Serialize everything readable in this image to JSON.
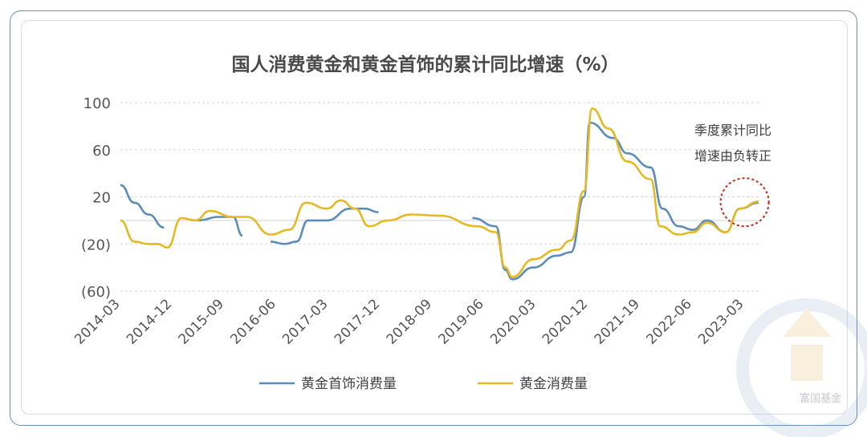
{
  "chart_data": {
    "type": "line",
    "title": "国人消费黄金和黄金首饰的累计同比增速（%）",
    "y_tick_labels": [
      "100",
      "60",
      "20",
      "(20)",
      "(60)"
    ],
    "y_tick_values": [
      100,
      60,
      20,
      -20,
      -60
    ],
    "ylim": [
      -60,
      100
    ],
    "x_tick_labels": [
      "2014-03",
      "2014-12",
      "2015-09",
      "2016-06",
      "2017-03",
      "2017-12",
      "2018-09",
      "2019-06",
      "2020-03",
      "2020-12",
      "2021-19",
      "2022-06",
      "2023-03"
    ],
    "grid": true,
    "legend_position": "bottom",
    "series": [
      {
        "name": "黄金首饰消费量",
        "color": "#5b8db8",
        "points": [
          [
            0,
            30
          ],
          [
            0.3,
            15
          ],
          [
            0.6,
            5
          ],
          [
            0.93,
            -6
          ],
          [
            1.65,
            0
          ],
          [
            2.1,
            3
          ],
          [
            2.4,
            3
          ],
          [
            2.6,
            -13
          ],
          [
            3.2,
            -18
          ],
          [
            3.5,
            -20
          ],
          [
            3.75,
            -18
          ],
          [
            4,
            0
          ],
          [
            4.4,
            0
          ],
          [
            4.9,
            10
          ],
          [
            5.2,
            10
          ],
          [
            5.5,
            7
          ],
          [
            6.2,
            7.5
          ],
          [
            6.9,
            6
          ],
          [
            7.5,
            2
          ],
          [
            8.0,
            -5
          ],
          [
            8.2,
            -42
          ],
          [
            8.35,
            -50
          ],
          [
            8.8,
            -40
          ],
          [
            9.3,
            -30
          ],
          [
            9.6,
            -27
          ],
          [
            9.88,
            20
          ],
          [
            10.0,
            83
          ],
          [
            10.5,
            70
          ],
          [
            10.8,
            57
          ],
          [
            11.3,
            45
          ],
          [
            11.55,
            10
          ],
          [
            11.9,
            -5
          ],
          [
            12.2,
            -8
          ],
          [
            12.5,
            0
          ],
          [
            12.9,
            -10
          ],
          [
            13.2,
            10
          ],
          [
            13.6,
            15
          ]
        ]
      },
      {
        "name": "黄金消费量",
        "color": "#e6b822",
        "points": [
          [
            0,
            0
          ],
          [
            0.3,
            -18
          ],
          [
            0.6,
            -20
          ],
          [
            0.8,
            -20
          ],
          [
            1.0,
            -23
          ],
          [
            1.3,
            2
          ],
          [
            1.6,
            0
          ],
          [
            1.9,
            8
          ],
          [
            2.4,
            3
          ],
          [
            2.7,
            3
          ],
          [
            3.2,
            -12
          ],
          [
            3.6,
            -8
          ],
          [
            3.95,
            15
          ],
          [
            4.4,
            10
          ],
          [
            4.7,
            17
          ],
          [
            5.0,
            10
          ],
          [
            5.3,
            -5
          ],
          [
            5.7,
            0
          ],
          [
            6.2,
            5
          ],
          [
            6.8,
            4
          ],
          [
            7.6,
            -5
          ],
          [
            8.0,
            -10
          ],
          [
            8.2,
            -40
          ],
          [
            8.35,
            -48
          ],
          [
            8.8,
            -33
          ],
          [
            9.3,
            -25
          ],
          [
            9.6,
            -17
          ],
          [
            9.88,
            25
          ],
          [
            10.05,
            95
          ],
          [
            10.4,
            78
          ],
          [
            10.8,
            50
          ],
          [
            11.3,
            35
          ],
          [
            11.5,
            -5
          ],
          [
            11.9,
            -12
          ],
          [
            12.2,
            -10
          ],
          [
            12.5,
            -2
          ],
          [
            12.9,
            -10
          ],
          [
            13.2,
            10
          ],
          [
            13.6,
            16
          ]
        ]
      }
    ],
    "annotation": {
      "lines": [
        "季度累计同比",
        "增速由负转正"
      ],
      "circle_at": [
        13.2,
        10
      ],
      "circle_color": "#c0392b"
    }
  },
  "watermark": "富国基金"
}
